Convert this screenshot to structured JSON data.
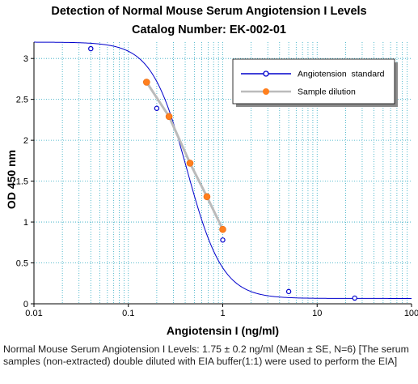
{
  "chart_data": {
    "type": "scatter",
    "title": "Detection of Normal Mouse Serum Angiotension I Levels",
    "subtitle": "Catalog Number: EK-002-01",
    "xlabel": "Angiotensin I (ng/ml)",
    "ylabel": "OD 450 nm",
    "xscale": "log",
    "xlim": [
      0.01,
      100
    ],
    "ylim": [
      0,
      3.2
    ],
    "x_ticks": [
      "0.01",
      "0.1",
      "1",
      "10",
      "100"
    ],
    "y_ticks": [
      "0",
      "0.5",
      "1",
      "1.5",
      "2",
      "2.5",
      "3"
    ],
    "grid": "on",
    "legend_position": "top-right",
    "series": [
      {
        "name": "Angiotension  standard",
        "color": "#0000cc",
        "marker": "open-circle",
        "line": "fitted-curve",
        "x": [
          0.04,
          0.2,
          1,
          5,
          25
        ],
        "y": [
          3.12,
          2.39,
          0.78,
          0.15,
          0.07
        ]
      },
      {
        "name": "Sample dilution",
        "color": "#ff7f1e",
        "line_color": "#bbbbbb",
        "marker": "filled-circle",
        "line": "straight",
        "x": [
          0.156,
          0.27,
          0.45,
          0.68,
          1.0
        ],
        "y": [
          2.71,
          2.29,
          1.72,
          1.31,
          0.91
        ]
      }
    ],
    "fit": {
      "top": 3.2,
      "bottom": 0.065,
      "ec50": 0.42,
      "hill": 2.3
    }
  },
  "caption": "Normal Mouse Serum Angiotension I Levels: 1.75 ± 0.2 ng/ml (Mean ± SE, N=6) [The serum samples (non-extracted) double diluted with EIA buffer(1:1) were used to perform the EIA]"
}
